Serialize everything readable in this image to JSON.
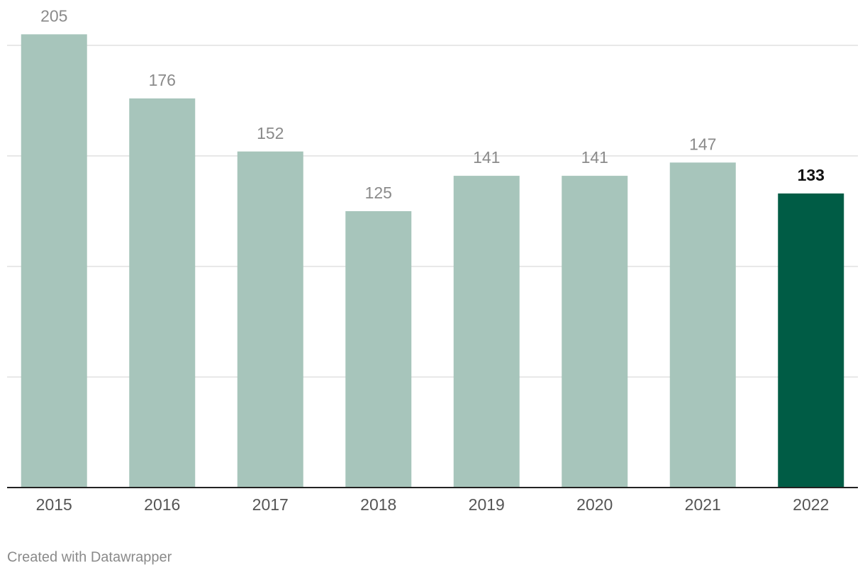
{
  "chart_data": {
    "type": "bar",
    "categories": [
      "2015",
      "2016",
      "2017",
      "2018",
      "2019",
      "2020",
      "2021",
      "2022"
    ],
    "values": [
      205,
      176,
      152,
      125,
      141,
      141,
      147,
      133
    ],
    "color": "#a7c5bb",
    "colors": [
      "#a7c5bb",
      "#a7c5bb",
      "#a7c5bb",
      "#a7c5bb",
      "#a7c5bb",
      "#a7c5bb",
      "#a7c5bb",
      "#005c45"
    ],
    "ylim": [
      0,
      200
    ],
    "yticks": [
      0,
      50,
      100,
      150,
      200
    ],
    "grid": true,
    "credit": "Created with Datawrapper"
  }
}
